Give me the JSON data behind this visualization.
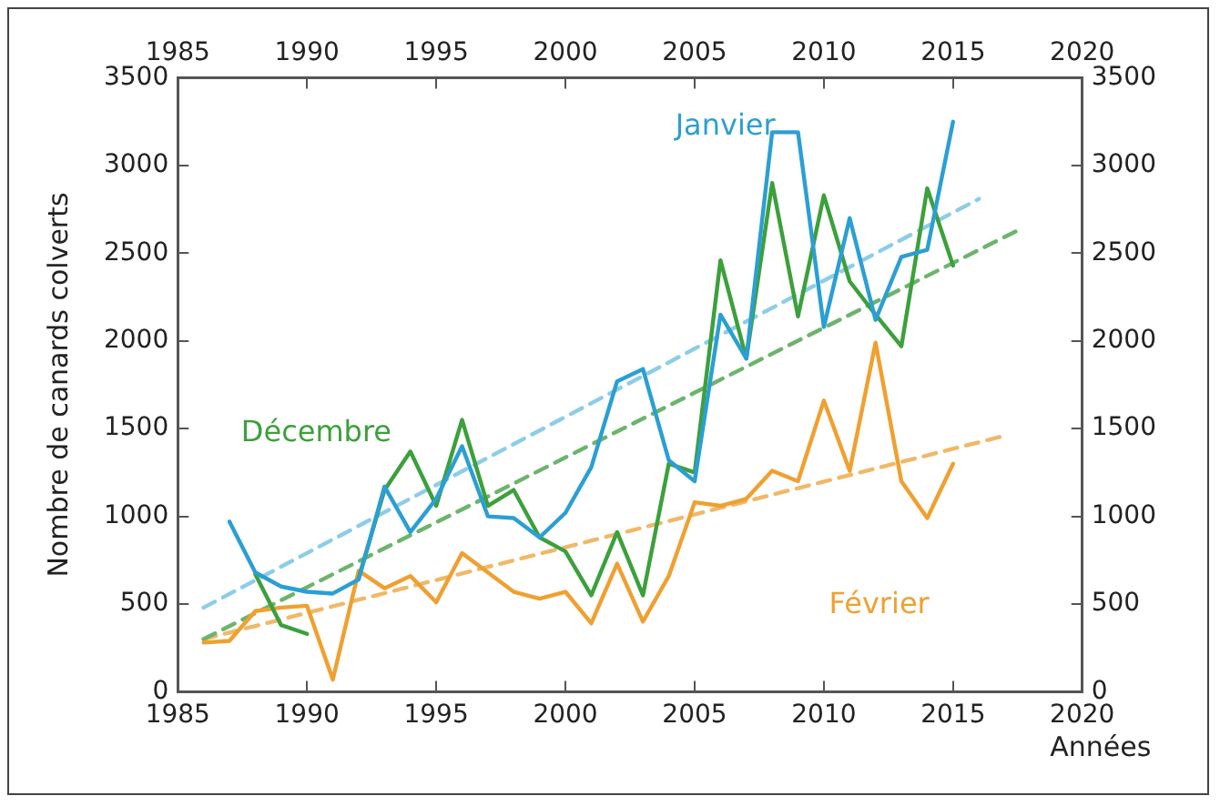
{
  "chart_data": {
    "type": "line",
    "xlabel": "Années",
    "ylabel": "Nombre de canards colverts",
    "x": [
      1986,
      1987,
      1988,
      1989,
      1990,
      1991,
      1992,
      1993,
      1994,
      1995,
      1996,
      1997,
      1998,
      1999,
      2000,
      2001,
      2002,
      2003,
      2004,
      2005,
      2006,
      2007,
      2008,
      2009,
      2010,
      2011,
      2012,
      2013,
      2014,
      2015
    ],
    "series": [
      {
        "name": "Janvier",
        "color": "#2b9fd3",
        "values": [
          null,
          970,
          680,
          600,
          570,
          560,
          640,
          1170,
          910,
          1100,
          1400,
          1000,
          990,
          880,
          1020,
          1280,
          1770,
          1840,
          1320,
          1200,
          2150,
          1900,
          3190,
          3190,
          2080,
          2700,
          2120,
          2480,
          2520,
          3250
        ]
      },
      {
        "name": "Décembre",
        "color": "#3ca03c",
        "values": [
          null,
          null,
          670,
          380,
          330,
          null,
          650,
          1150,
          1370,
          1060,
          1550,
          1060,
          1150,
          880,
          800,
          550,
          910,
          550,
          1300,
          1250,
          2460,
          1900,
          2900,
          2140,
          2830,
          2340,
          2150,
          1970,
          2870,
          2430
        ]
      },
      {
        "name": "Février",
        "color": "#f0a030",
        "values": [
          280,
          290,
          460,
          480,
          490,
          70,
          690,
          590,
          660,
          510,
          790,
          680,
          570,
          530,
          570,
          390,
          730,
          400,
          660,
          1080,
          1060,
          1100,
          1260,
          1200,
          1660,
          1260,
          1990,
          1200,
          990,
          1300
        ]
      },
      {
        "type": "line",
        "line_style": "dashed",
        "color": "#8ccde8",
        "x": [
          1986,
          2016
        ],
        "values": [
          480,
          2810
        ]
      },
      {
        "type": "line",
        "line_style": "dashed",
        "color": "#6cb46c",
        "x": [
          1986,
          2017.5
        ],
        "values": [
          300,
          2630
        ]
      },
      {
        "type": "line",
        "line_style": "dashed",
        "color": "#f0b868",
        "x": [
          1986,
          2017
        ],
        "values": [
          300,
          1460
        ]
      }
    ],
    "xlim": [
      1985,
      2020
    ],
    "xticks": [
      1985,
      1990,
      1995,
      2000,
      2005,
      2010,
      2015,
      2020
    ],
    "x2lim": [
      1985,
      2020
    ],
    "x2ticks": [
      1985,
      1990,
      1995,
      2000,
      2005,
      2010,
      2015,
      2020
    ],
    "ylim": [
      0,
      3500
    ],
    "yticks": [
      0,
      500,
      1000,
      1500,
      2000,
      2500,
      3000,
      3500
    ],
    "y2lim": [
      0,
      3500
    ],
    "y2ticks": [
      0,
      500,
      1000,
      1500,
      2000,
      2500,
      3000,
      3500
    ],
    "grid": false,
    "legend": false,
    "marker": "none",
    "line_style": "solid"
  }
}
